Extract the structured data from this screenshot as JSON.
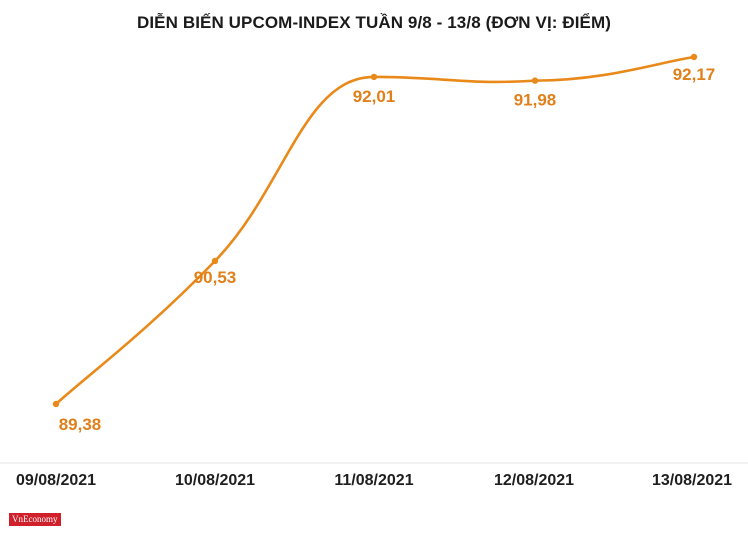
{
  "title": "DIỄN BIẾN UPCOM-INDEX TUẦN 9/8 - 13/8 (ĐƠN VỊ: ĐIỂM)",
  "logo_text": "VnEconomy",
  "colors": {
    "line": "#e8891a",
    "label": "#e0801a",
    "axis": "#e6e6e6",
    "logo_bg": "#d0202b"
  },
  "chart_data": {
    "type": "line",
    "title": "DIỄN BIẾN UPCOM-INDEX TUẦN 9/8 - 13/8 (ĐƠN VỊ: ĐIỂM)",
    "categories": [
      "09/08/2021",
      "10/08/2021",
      "11/08/2021",
      "12/08/2021",
      "13/08/2021"
    ],
    "series": [
      {
        "values": [
          89.38,
          90.53,
          92.01,
          91.98,
          92.17
        ],
        "labels": [
          "89,38",
          "90,53",
          "92,01",
          "91,98",
          "92,17"
        ]
      }
    ],
    "xlabel": "",
    "ylabel": "",
    "ylim": [
      89.38,
      92.17
    ],
    "grid": false,
    "legend": "none",
    "smooth": true
  }
}
